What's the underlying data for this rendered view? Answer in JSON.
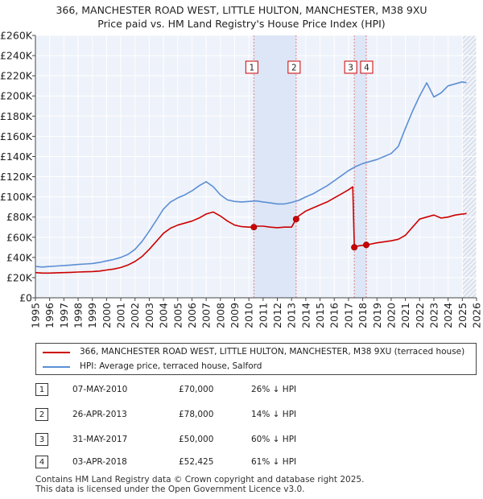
{
  "chart_data": {
    "type": "line",
    "title": "366, MANCHESTER ROAD WEST, LITTLE HULTON, MANCHESTER, M38 9XU",
    "subtitle": "Price paid vs. HM Land Registry's House Price Index (HPI)",
    "xlim": [
      1995,
      2026
    ],
    "ylim": [
      0,
      260000
    ],
    "x_ticks": [
      "1995",
      "1996",
      "1997",
      "1998",
      "1999",
      "2000",
      "2001",
      "2002",
      "2003",
      "2004",
      "2005",
      "2006",
      "2007",
      "2008",
      "2009",
      "2010",
      "2011",
      "2012",
      "2013",
      "2014",
      "2015",
      "2016",
      "2017",
      "2018",
      "2019",
      "2020",
      "2021",
      "2022",
      "2023",
      "2024",
      "2025",
      "2026"
    ],
    "y_ticks": [
      {
        "value": 0,
        "label": "£0"
      },
      {
        "value": 20000,
        "label": "£20K"
      },
      {
        "value": 40000,
        "label": "£40K"
      },
      {
        "value": 60000,
        "label": "£60K"
      },
      {
        "value": 80000,
        "label": "£80K"
      },
      {
        "value": 100000,
        "label": "£100K"
      },
      {
        "value": 120000,
        "label": "£120K"
      },
      {
        "value": 140000,
        "label": "£140K"
      },
      {
        "value": 160000,
        "label": "£160K"
      },
      {
        "value": 180000,
        "label": "£180K"
      },
      {
        "value": 200000,
        "label": "£200K"
      },
      {
        "value": 220000,
        "label": "£220K"
      },
      {
        "value": 240000,
        "label": "£240K"
      },
      {
        "value": 260000,
        "label": "£260K"
      }
    ],
    "grid": true,
    "future_start": 2025.0,
    "series": [
      {
        "name": "366, MANCHESTER ROAD WEST, LITTLE HULTON, MANCHESTER, M38 9XU (terraced house)",
        "color": "#cc0000",
        "x": [
          1995.0,
          1995.5,
          1996.0,
          1996.5,
          1997.0,
          1997.5,
          1998.0,
          1998.5,
          1999.0,
          1999.5,
          2000.0,
          2000.5,
          2001.0,
          2001.5,
          2002.0,
          2002.5,
          2003.0,
          2003.5,
          2004.0,
          2004.5,
          2005.0,
          2005.5,
          2006.0,
          2006.5,
          2007.0,
          2007.5,
          2008.0,
          2008.5,
          2009.0,
          2009.5,
          2010.0,
          2010.35,
          2010.5,
          2011.0,
          2011.5,
          2012.0,
          2012.5,
          2013.0,
          2013.32,
          2013.5,
          2014.0,
          2014.5,
          2015.0,
          2015.5,
          2016.0,
          2016.5,
          2017.0,
          2017.3,
          2017.41,
          2017.5,
          2018.0,
          2018.25,
          2018.5,
          2019.0,
          2019.5,
          2020.0,
          2020.5,
          2021.0,
          2021.5,
          2022.0,
          2022.5,
          2023.0,
          2023.5,
          2024.0,
          2024.5,
          2025.0,
          2025.3
        ],
        "y": [
          25000,
          24500,
          24500,
          24800,
          25000,
          25200,
          25500,
          25800,
          26000,
          26500,
          27500,
          28500,
          30000,
          32500,
          36000,
          41000,
          48000,
          56000,
          64000,
          69000,
          72000,
          74000,
          76000,
          79000,
          83000,
          85000,
          81000,
          76000,
          72000,
          70500,
          70000,
          70000,
          71000,
          71000,
          70000,
          69500,
          70000,
          70000,
          78000,
          81000,
          86000,
          89000,
          92000,
          95000,
          99000,
          103000,
          107000,
          110000,
          50000,
          51000,
          52000,
          52425,
          53000,
          54500,
          55500,
          56500,
          58000,
          62000,
          70000,
          78000,
          80000,
          82000,
          79000,
          80000,
          82000,
          83000,
          83500
        ]
      },
      {
        "name": "HPI: Average price, terraced house, Salford",
        "color": "#5b8fd4",
        "x": [
          1995.0,
          1995.5,
          1996.0,
          1996.5,
          1997.0,
          1997.5,
          1998.0,
          1998.5,
          1999.0,
          1999.5,
          2000.0,
          2000.5,
          2001.0,
          2001.5,
          2002.0,
          2002.5,
          2003.0,
          2003.5,
          2004.0,
          2004.5,
          2005.0,
          2005.5,
          2006.0,
          2006.5,
          2007.0,
          2007.5,
          2008.0,
          2008.5,
          2009.0,
          2009.5,
          2010.0,
          2010.5,
          2011.0,
          2011.5,
          2012.0,
          2012.5,
          2013.0,
          2013.5,
          2014.0,
          2014.5,
          2015.0,
          2015.5,
          2016.0,
          2016.5,
          2017.0,
          2017.5,
          2018.0,
          2018.5,
          2019.0,
          2019.5,
          2020.0,
          2020.5,
          2021.0,
          2021.5,
          2022.0,
          2022.5,
          2023.0,
          2023.5,
          2024.0,
          2024.5,
          2025.0,
          2025.3
        ],
        "y": [
          31000,
          30500,
          31000,
          31500,
          32000,
          32500,
          33000,
          33500,
          34000,
          35000,
          36500,
          38000,
          40000,
          43000,
          48000,
          56000,
          66000,
          77000,
          88000,
          95000,
          99000,
          102000,
          106000,
          111000,
          115000,
          110000,
          102000,
          97000,
          95500,
          95000,
          95500,
          96000,
          95000,
          94000,
          93000,
          93000,
          94500,
          96500,
          100000,
          103000,
          107000,
          111000,
          116000,
          121000,
          126000,
          130000,
          133000,
          135000,
          137000,
          140000,
          143000,
          150000,
          168000,
          185000,
          200000,
          213000,
          199000,
          203000,
          210000,
          212000,
          214000,
          213000
        ]
      }
    ],
    "sales": [
      {
        "id": "1",
        "date": "07-MAY-2010",
        "x": 2010.35,
        "price": 70000,
        "price_label": "£70,000",
        "hpi_diff": "26% ↓ HPI"
      },
      {
        "id": "2",
        "date": "26-APR-2013",
        "x": 2013.32,
        "price": 78000,
        "price_label": "£78,000",
        "hpi_diff": "14% ↓ HPI"
      },
      {
        "id": "3",
        "date": "31-MAY-2017",
        "x": 2017.41,
        "price": 50000,
        "price_label": "£50,000",
        "hpi_diff": "60% ↓ HPI"
      },
      {
        "id": "4",
        "date": "03-APR-2018",
        "x": 2018.25,
        "price": 52425,
        "price_label": "£52,425",
        "hpi_diff": "61% ↓ HPI"
      }
    ]
  },
  "legend": {
    "property_label": "366, MANCHESTER ROAD WEST, LITTLE HULTON, MANCHESTER, M38 9XU (terraced house)",
    "hpi_label": "HPI: Average price, terraced house, Salford",
    "property_color": "#cc0000",
    "hpi_color": "#5b8fd4"
  },
  "footer": {
    "line1": "Contains HM Land Registry data © Crown copyright and database right 2025.",
    "line2": "This data is licensed under the Open Government Licence v3.0."
  }
}
